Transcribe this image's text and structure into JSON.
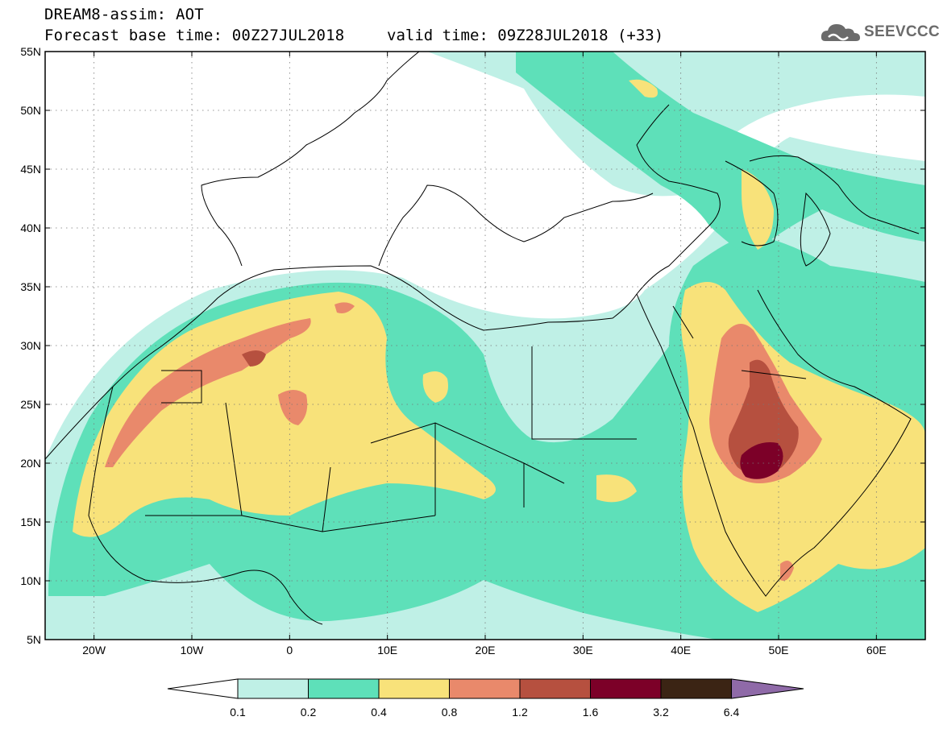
{
  "header": {
    "model_title": "DREAM8-assim: AOT",
    "base_time": "Forecast base time: 00Z27JUL2018",
    "valid_time": "valid time: 09Z28JUL2018 (+33)",
    "logo_text": "SEEVCCC"
  },
  "map": {
    "lat_labels": [
      "55N",
      "50N",
      "45N",
      "40N",
      "35N",
      "30N",
      "25N",
      "20N",
      "15N",
      "10N",
      "5N"
    ],
    "lat_values": [
      55,
      50,
      45,
      40,
      35,
      30,
      25,
      20,
      15,
      10,
      5
    ],
    "lon_labels": [
      "20W",
      "10W",
      "0",
      "10E",
      "20E",
      "30E",
      "40E",
      "50E",
      "60E"
    ],
    "lon_values": [
      -20,
      -10,
      0,
      10,
      20,
      30,
      40,
      50,
      60
    ],
    "lon_range": [
      -25,
      65
    ],
    "lat_range": [
      5,
      55
    ],
    "grid": "dotted"
  },
  "legend": {
    "labels": [
      "0.1",
      "0.2",
      "0.4",
      "0.8",
      "1.2",
      "1.6",
      "3.2",
      "6.4"
    ],
    "colors": [
      "#ffffff",
      "#bff0e6",
      "#5ee0b9",
      "#f8e27a",
      "#e9896b",
      "#b6503f",
      "#7c0028",
      "#3b2414",
      "#8f6aa8"
    ]
  },
  "colors": {
    "c1": "#bff0e6",
    "c2": "#5ee0b9",
    "c3": "#f8e27a",
    "c4": "#e9896b",
    "c5": "#b6503f",
    "c6": "#7c0028",
    "c7": "#3b2414",
    "logo": "#6b6b6b"
  }
}
